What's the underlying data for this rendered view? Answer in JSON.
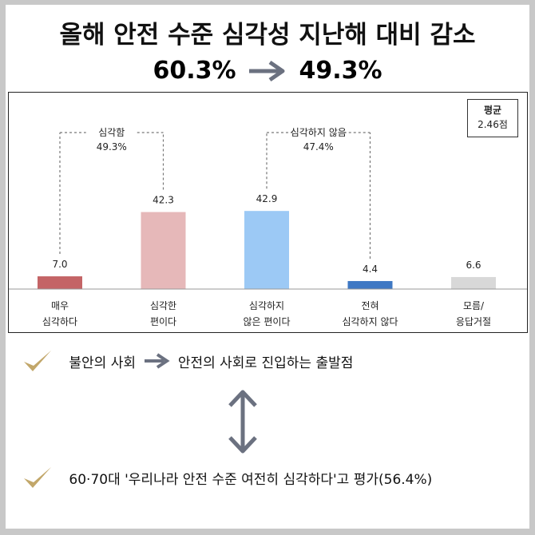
{
  "headline": {
    "title": "올해 안전 수준 심각성 지난해 대비 감소",
    "from_value": "60.3%",
    "to_value": "49.3%"
  },
  "chart_data": {
    "type": "bar",
    "categories": [
      [
        "매우",
        "심각하다"
      ],
      [
        "심각한",
        "편이다"
      ],
      [
        "심각하지",
        "않은 편이다"
      ],
      [
        "전혀",
        "심각하지 않다"
      ],
      [
        "모름/",
        "응답거절"
      ]
    ],
    "values": [
      7.0,
      42.3,
      42.9,
      4.4,
      6.6
    ],
    "value_labels": [
      "7.0",
      "42.3",
      "42.9",
      "4.4",
      "6.6"
    ],
    "bar_colors": [
      "#c46466",
      "#e6b8b9",
      "#9cc9f5",
      "#3f78c4",
      "#d8d8d8"
    ],
    "ylim": [
      0,
      50
    ],
    "grid": false,
    "groups": [
      {
        "label": "심각함",
        "value": "49.3%",
        "from": 0,
        "to": 1
      },
      {
        "label": "심각하지 않음",
        "value": "47.4%",
        "from": 2,
        "to": 3
      }
    ],
    "average": {
      "label": "평균",
      "value": "2.46점"
    }
  },
  "notes": [
    {
      "icon": "check-icon",
      "before": "불안의 사회",
      "after": "안전의 사회로 진입하는 출발점"
    },
    {
      "icon": "check-icon",
      "text": "60·70대 '우리나라 안전 수준 여전히 심각하다'고 평가(56.4%)"
    }
  ],
  "colors": {
    "arrow": "#6b7180",
    "check": "#c2a76a"
  }
}
